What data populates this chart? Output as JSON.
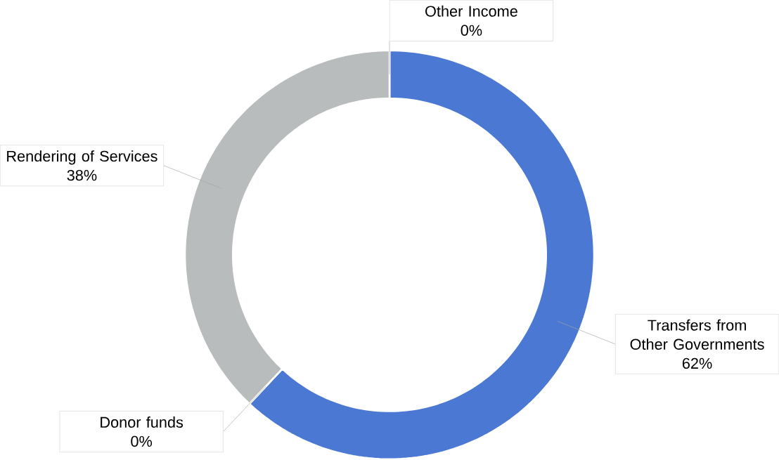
{
  "chart_data": {
    "type": "donut",
    "categories": [
      "Transfers from Other Governments",
      "Donor funds",
      "Rendering of Services",
      "Other Income"
    ],
    "values": [
      62,
      0,
      38,
      0
    ],
    "value_labels": [
      "62%",
      "0%",
      "38%",
      "0%"
    ],
    "colors": [
      "#4a78d2",
      "#8fa0b8",
      "#b9bcbc",
      "#a3b3c8"
    ]
  }
}
